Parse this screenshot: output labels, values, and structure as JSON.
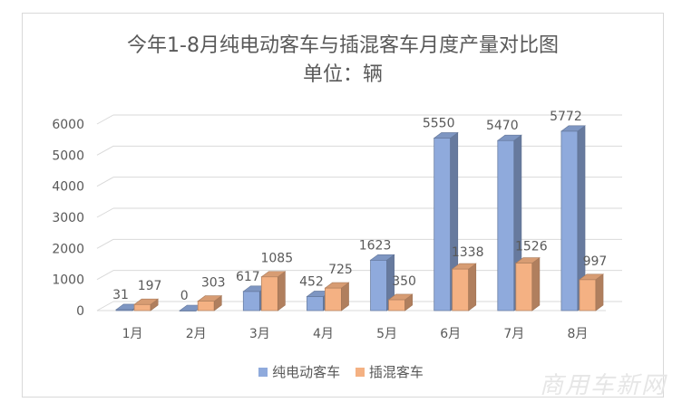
{
  "chart_data": {
    "type": "bar",
    "title": "今年1-8月纯电动客车与插混客车月度产量对比图",
    "subtitle": "单位：辆",
    "categories": [
      "1月",
      "2月",
      "3月",
      "4月",
      "5月",
      "6月",
      "7月",
      "8月"
    ],
    "series": [
      {
        "name": "纯电动客车",
        "values": [
          31,
          0,
          617,
          452,
          1623,
          5550,
          5470,
          5772
        ],
        "color": "#8faadc"
      },
      {
        "name": "插混客车",
        "values": [
          197,
          303,
          1085,
          725,
          350,
          1338,
          1526,
          997
        ],
        "color": "#f4b183"
      }
    ],
    "yticks": [
      0,
      1000,
      2000,
      3000,
      4000,
      5000,
      6000
    ],
    "ylim": [
      0,
      6000
    ],
    "grid": true,
    "legend_position": "bottom",
    "style": "3d-clustered-column"
  },
  "watermark": "商用车新网"
}
